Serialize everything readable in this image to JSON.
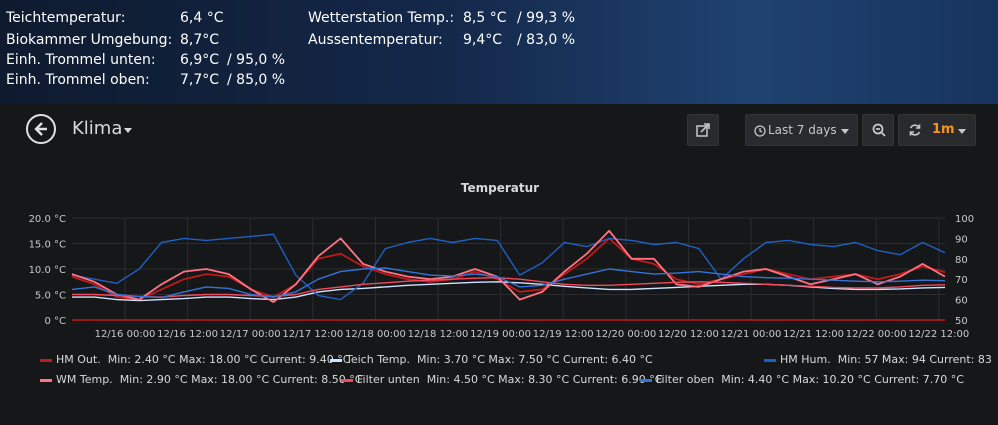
{
  "stats": {
    "teich_label": "Teichtemperatur:",
    "teich_value": "6,4 °C",
    "biokammer_label": "Biokammer Umgebung:",
    "biokammer_value": "8,7°C",
    "trommel_unten_label": "Einh. Trommel unten:",
    "trommel_unten_value": "6,9°C",
    "trommel_unten_hum": "/ 95,0 %",
    "trommel_oben_label": "Einh. Trommel oben:",
    "trommel_oben_value": "7,7°C",
    "trommel_oben_hum": "/ 85,0 %",
    "wetter_label": "Wetterstation Temp.:",
    "wetter_value": "8,5 °C",
    "wetter_hum": "/ 99,3 %",
    "aussen_label": "Aussentemperatur:",
    "aussen_value": "9,4°C",
    "aussen_hum": "/ 83,0 %"
  },
  "dashboard": {
    "title": "Klima",
    "time_range": "Last 7 days",
    "refresh": "1m",
    "icons": [
      "back-arrow-icon",
      "share-icon",
      "clock-icon",
      "zoom-out-icon",
      "refresh-icon"
    ]
  },
  "chart_data": {
    "type": "line",
    "title": "Temperatur",
    "x_ticks": [
      "12/16 00:00",
      "12/16 12:00",
      "12/17 00:00",
      "12/17 12:00",
      "12/18 00:00",
      "12/18 12:00",
      "12/19 00:00",
      "12/19 12:00",
      "12/20 00:00",
      "12/20 12:00",
      "12/21 00:00",
      "12/21 12:00",
      "12/22 00:00",
      "12/22 12:00"
    ],
    "y_left": {
      "ticks": [
        "0 °C",
        "5.0 °C",
        "10.0 °C",
        "15.0 °C",
        "20.0 °C"
      ],
      "range": [
        0,
        20
      ]
    },
    "y_right": {
      "ticks": [
        "50",
        "60",
        "70",
        "80",
        "90",
        "100"
      ],
      "range": [
        50,
        100
      ]
    },
    "grid": true,
    "series": [
      {
        "name": "HM Out.",
        "color": "#bf1b1b",
        "axis": "left",
        "stats": "Min: 2.40 °C  Max: 18.00 °C  Current: 9.40 °C",
        "values": [
          8.5,
          7,
          4.5,
          4,
          6,
          8,
          9,
          8.5,
          6,
          4.5,
          7,
          12,
          13,
          10.5,
          9,
          8,
          7.5,
          8,
          9.5,
          8,
          5.5,
          6,
          9,
          12,
          16,
          12,
          11,
          8,
          7,
          8,
          9,
          10,
          9,
          8,
          8.5,
          9,
          8,
          9,
          10.5,
          9.4
        ]
      },
      {
        "name": "Teich Temp.",
        "color": "#cfe2ff",
        "axis": "left",
        "stats": "Min: 3.70 °C  Max: 7.50 °C  Current: 6.40 °C",
        "values": [
          4.5,
          4.5,
          4,
          3.8,
          4,
          4.2,
          4.5,
          4.5,
          4.2,
          4,
          4.5,
          5.5,
          6,
          6.2,
          6.5,
          6.8,
          7,
          7.2,
          7.4,
          7.5,
          7.3,
          7,
          6.6,
          6.3,
          6,
          6,
          6.2,
          6.4,
          6.6,
          6.8,
          7,
          7,
          6.8,
          6.5,
          6.2,
          6,
          6,
          6.1,
          6.3,
          6.4
        ]
      },
      {
        "name": "HM Hum.",
        "color": "#1f60c4",
        "axis": "right",
        "stats": "Min: 57  Max: 94  Current: 83",
        "values": [
          72,
          70,
          68,
          75,
          88,
          90,
          89,
          90,
          91,
          92,
          72,
          62,
          60,
          68,
          85,
          88,
          90,
          88,
          90,
          89,
          72,
          78,
          88,
          86,
          90,
          89,
          87,
          88,
          85,
          70,
          80,
          88,
          89,
          87,
          86,
          88,
          84,
          82,
          88,
          83
        ]
      },
      {
        "name": "WM Temp.",
        "color": "#ff7383",
        "axis": "left",
        "stats": "Min: 2.90 °C  Max: 18.00 °C  Current: 8.50 °C",
        "values": [
          9,
          7.5,
          5,
          4,
          7,
          9.5,
          10,
          9,
          6,
          3.5,
          7,
          12.5,
          16,
          11,
          9.5,
          8.5,
          8,
          8.5,
          10,
          8.5,
          4,
          5.5,
          9.5,
          13,
          17.5,
          12,
          12,
          7,
          6.5,
          8,
          9.5,
          10,
          8.5,
          7,
          8,
          9,
          7,
          8.5,
          11,
          8.5
        ]
      },
      {
        "name": "Filter unten",
        "color": "#f2495c",
        "axis": "left",
        "stats": "Min: 4.50 °C  Max: 8.30 °C  Current: 6.90 °C",
        "values": [
          5,
          5,
          4.8,
          4.6,
          4.5,
          4.8,
          5,
          5,
          4.8,
          4.6,
          5,
          6,
          6.5,
          7,
          7.3,
          7.6,
          7.8,
          8,
          8.2,
          8.3,
          8,
          7.5,
          7,
          6.8,
          6.8,
          7,
          7.2,
          7.4,
          7.5,
          7.4,
          7.2,
          7,
          6.8,
          6.6,
          6.4,
          6.3,
          6.3,
          6.5,
          6.8,
          6.9
        ]
      },
      {
        "name": "Filter oben",
        "color": "#3274d9",
        "axis": "left",
        "stats": "Min: 4.40 °C  Max: 10.20 °C  Current: 7.70 °C",
        "values": [
          6,
          6.5,
          5,
          4.6,
          4.4,
          5.5,
          6.5,
          6.2,
          5,
          4.5,
          5.5,
          8,
          9.5,
          10,
          10.2,
          9.5,
          8.8,
          8.6,
          9,
          8.5,
          6.5,
          6.8,
          8,
          9,
          10,
          9.5,
          9,
          9.2,
          9.5,
          9,
          8.5,
          8.3,
          8.2,
          8,
          7.8,
          7.6,
          7.5,
          7.6,
          7.8,
          7.7
        ]
      }
    ]
  }
}
